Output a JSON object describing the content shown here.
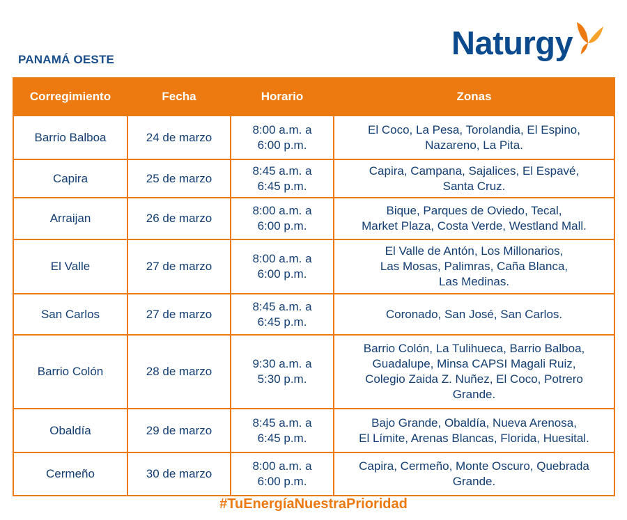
{
  "region": "PANAMÁ OESTE",
  "brand": {
    "name": "Naturgy",
    "primary_color": "#0b4a8c",
    "accent_color": "#ec7a10"
  },
  "table": {
    "headers": [
      "Corregimiento",
      "Fecha",
      "Horario",
      "Zonas"
    ],
    "rows": [
      {
        "corregimiento": "Barrio Balboa",
        "fecha": "24 de marzo",
        "horario": [
          "8:00 a.m. a",
          "6:00 p.m."
        ],
        "zonas": [
          "El Coco, La Pesa, Torolandia, El Espino,",
          "Nazareno, La Pita."
        ]
      },
      {
        "corregimiento": "Capira",
        "fecha": "25 de marzo",
        "horario": [
          "8:45 a.m. a",
          "6:45 p.m."
        ],
        "zonas": [
          "Capira, Campana, Sajalices, El Espavé,",
          "Santa Cruz."
        ]
      },
      {
        "corregimiento": "Arraijan",
        "fecha": "26 de marzo",
        "horario": [
          "8:00 a.m. a",
          "6:00 p.m."
        ],
        "zonas": [
          "Bique, Parques de Oviedo, Tecal,",
          "Market Plaza, Costa Verde, Westland Mall."
        ]
      },
      {
        "corregimiento": "El Valle",
        "fecha": "27 de marzo",
        "horario": [
          "8:00 a.m. a",
          "6:00 p.m."
        ],
        "zonas": [
          "El Valle de Antón, Los Millonarios,",
          "Las Mosas, Palimras, Caña Blanca,",
          "Las Medinas."
        ]
      },
      {
        "corregimiento": "San Carlos",
        "fecha": "27 de marzo",
        "horario": [
          "8:45 a.m. a",
          "6:45 p.m."
        ],
        "zonas": [
          "Coronado, San José, San Carlos."
        ]
      },
      {
        "corregimiento": "Barrio Colón",
        "fecha": "28 de marzo",
        "horario": [
          "9:30 a.m. a",
          "5:30 p.m."
        ],
        "zonas": [
          "Barrio Colón, La Tulihueca, Barrio Balboa,",
          "Guadalupe, Minsa CAPSI Magali Ruiz,",
          "Colegio Zaida Z. Nuñez, El Coco, Potrero",
          "Grande."
        ]
      },
      {
        "corregimiento": "Obaldía",
        "fecha": "29 de marzo",
        "horario": [
          "8:45 a.m. a",
          "6:45 p.m."
        ],
        "zonas": [
          "Bajo Grande, Obaldía, Nueva Arenosa,",
          "El Límite, Arenas Blancas, Florida, Huesital."
        ]
      },
      {
        "corregimiento": "Cermeño",
        "fecha": "30 de marzo",
        "horario": [
          "8:00 a.m. a",
          "6:00 p.m."
        ],
        "zonas": [
          "Capira, Cermeño, Monte Oscuro, Quebrada",
          "Grande."
        ]
      }
    ]
  },
  "hashtag": "#TuEnergíaNuestraPrioridad"
}
